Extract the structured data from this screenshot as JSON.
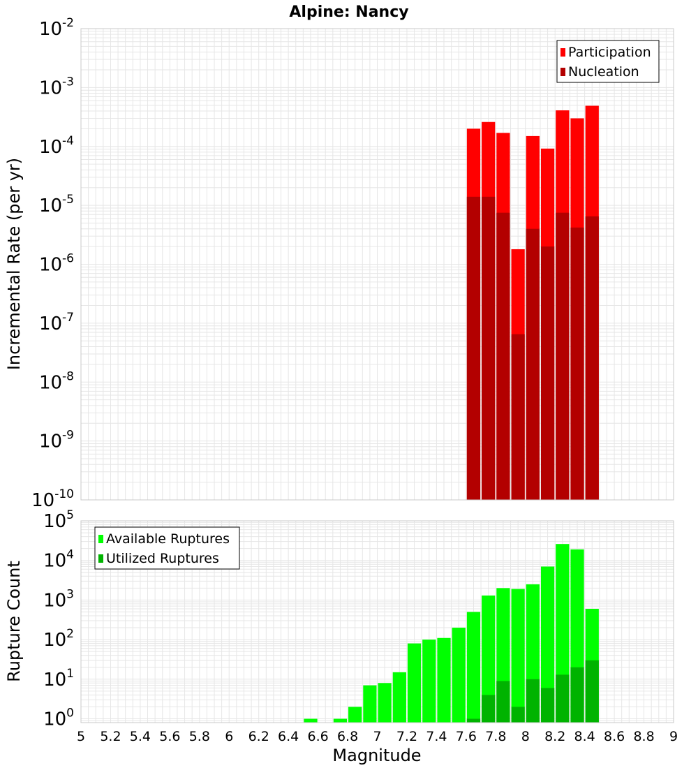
{
  "title": "Alpine: Nancy",
  "colors": {
    "participation": "#ff0000",
    "nucleation": "#b30000",
    "available": "#00ff00",
    "utilized": "#00b300",
    "grid": "#e6e6e6",
    "frame": "#c8c8c8"
  },
  "chart_data": [
    {
      "type": "bar",
      "ylabel": "Incremental Rate (per yr)",
      "yscale": "log",
      "ylim": [
        1e-10,
        0.01
      ],
      "xlim": [
        5,
        9
      ],
      "grid": true,
      "legend_position": "top-right",
      "bin_width": 0.1,
      "series": [
        {
          "name": "Participation",
          "x": [
            7.65,
            7.75,
            7.85,
            7.95,
            8.05,
            8.15,
            8.25,
            8.35,
            8.45
          ],
          "values": [
            0.0002,
            0.00026,
            0.00017,
            1.8e-06,
            0.00015,
            9.2e-05,
            0.00041,
            0.0003,
            0.00049
          ]
        },
        {
          "name": "Nucleation",
          "x": [
            7.65,
            7.75,
            7.85,
            7.95,
            8.05,
            8.15,
            8.25,
            8.35,
            8.45
          ],
          "values": [
            1.4e-05,
            1.4e-05,
            7.5e-06,
            6.5e-08,
            4e-06,
            2e-06,
            7.5e-06,
            4.2e-06,
            6.5e-06
          ]
        }
      ]
    },
    {
      "type": "bar",
      "xlabel": "Magnitude",
      "ylabel": "Rupture Count",
      "yscale": "log",
      "ylim": [
        0.8,
        100000
      ],
      "xlim": [
        5,
        9
      ],
      "grid": true,
      "legend_position": "top-left",
      "bin_width": 0.1,
      "x_ticks": [
        "5",
        "5.2",
        "5.4",
        "5.6",
        "5.8",
        "6",
        "6.2",
        "6.4",
        "6.6",
        "6.8",
        "7",
        "7.2",
        "7.4",
        "7.6",
        "7.8",
        "8",
        "8.2",
        "8.4",
        "8.6",
        "8.8",
        "9"
      ],
      "series": [
        {
          "name": "Available Ruptures",
          "x": [
            6.55,
            6.75,
            6.85,
            6.95,
            7.05,
            7.15,
            7.25,
            7.35,
            7.45,
            7.55,
            7.65,
            7.75,
            7.85,
            7.95,
            8.05,
            8.15,
            8.25,
            8.35,
            8.45
          ],
          "values": [
            1,
            1,
            2,
            7,
            8,
            15,
            80,
            100,
            110,
            200,
            500,
            1300,
            2000,
            1900,
            2500,
            7000,
            26000,
            19000,
            600
          ]
        },
        {
          "name": "Utilized Ruptures",
          "x": [
            7.65,
            7.75,
            7.85,
            7.95,
            8.05,
            8.15,
            8.25,
            8.35,
            8.45
          ],
          "values": [
            1,
            4,
            9,
            2,
            10,
            6,
            13,
            20,
            30
          ]
        }
      ]
    }
  ]
}
